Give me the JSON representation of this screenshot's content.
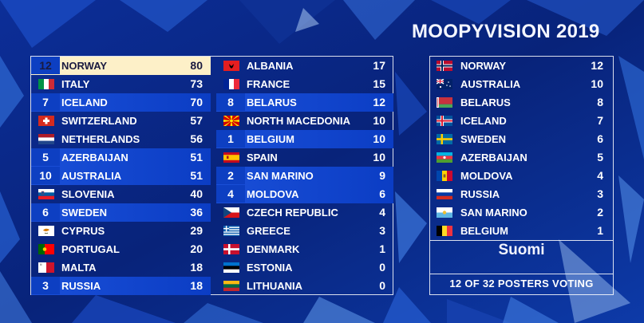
{
  "title": "MOOPYVISION 2019",
  "scoreboard": {
    "left": [
      {
        "pts": "12",
        "country": "NORWAY",
        "total": "80",
        "flag": "norway-flag",
        "scored": true,
        "top": true
      },
      {
        "pts": "",
        "country": "ITALY",
        "total": "73",
        "flag": "italy-flag",
        "scored": false
      },
      {
        "pts": "7",
        "country": "ICELAND",
        "total": "70",
        "flag": "iceland-flag",
        "scored": true
      },
      {
        "pts": "",
        "country": "SWITZERLAND",
        "total": "57",
        "flag": "switzerland-flag",
        "scored": false
      },
      {
        "pts": "",
        "country": "NETHERLANDS",
        "total": "56",
        "flag": "netherlands-flag",
        "scored": false
      },
      {
        "pts": "5",
        "country": "AZERBAIJAN",
        "total": "51",
        "flag": "azerbaijan-flag",
        "scored": true
      },
      {
        "pts": "10",
        "country": "AUSTRALIA",
        "total": "51",
        "flag": "australia-flag",
        "scored": true
      },
      {
        "pts": "",
        "country": "SLOVENIA",
        "total": "40",
        "flag": "slovenia-flag",
        "scored": false
      },
      {
        "pts": "6",
        "country": "SWEDEN",
        "total": "36",
        "flag": "sweden-flag",
        "scored": true
      },
      {
        "pts": "",
        "country": "CYPRUS",
        "total": "29",
        "flag": "cyprus-flag",
        "scored": false
      },
      {
        "pts": "",
        "country": "PORTUGAL",
        "total": "20",
        "flag": "portugal-flag",
        "scored": false
      },
      {
        "pts": "",
        "country": "MALTA",
        "total": "18",
        "flag": "malta-flag",
        "scored": false
      },
      {
        "pts": "3",
        "country": "RUSSIA",
        "total": "18",
        "flag": "russia-flag",
        "scored": true
      }
    ],
    "right": [
      {
        "pts": "",
        "country": "ALBANIA",
        "total": "17",
        "flag": "albania-flag",
        "scored": false
      },
      {
        "pts": "",
        "country": "FRANCE",
        "total": "15",
        "flag": "france-flag",
        "scored": false
      },
      {
        "pts": "8",
        "country": "BELARUS",
        "total": "12",
        "flag": "belarus-flag",
        "scored": true
      },
      {
        "pts": "",
        "country": "NORTH MACEDONIA",
        "total": "10",
        "flag": "north-macedonia-flag",
        "scored": false
      },
      {
        "pts": "1",
        "country": "BELGIUM",
        "total": "10",
        "flag": "belgium-flag",
        "scored": true
      },
      {
        "pts": "",
        "country": "SPAIN",
        "total": "10",
        "flag": "spain-flag",
        "scored": false
      },
      {
        "pts": "2",
        "country": "SAN MARINO",
        "total": "9",
        "flag": "san-marino-flag",
        "scored": true
      },
      {
        "pts": "4",
        "country": "MOLDOVA",
        "total": "6",
        "flag": "moldova-flag",
        "scored": true
      },
      {
        "pts": "",
        "country": "CZECH REPUBLIC",
        "total": "4",
        "flag": "czech-republic-flag",
        "scored": false
      },
      {
        "pts": "",
        "country": "GREECE",
        "total": "3",
        "flag": "greece-flag",
        "scored": false
      },
      {
        "pts": "",
        "country": "DENMARK",
        "total": "1",
        "flag": "denmark-flag",
        "scored": false
      },
      {
        "pts": "",
        "country": "ESTONIA",
        "total": "0",
        "flag": "estonia-flag",
        "scored": false
      },
      {
        "pts": "",
        "country": "LITHUANIA",
        "total": "0",
        "flag": "lithuania-flag",
        "scored": false
      }
    ]
  },
  "votes": [
    {
      "country": "NORWAY",
      "pts": "12",
      "flag": "norway-flag"
    },
    {
      "country": "AUSTRALIA",
      "pts": "10",
      "flag": "australia-flag"
    },
    {
      "country": "BELARUS",
      "pts": "8",
      "flag": "belarus-flag"
    },
    {
      "country": "ICELAND",
      "pts": "7",
      "flag": "iceland-flag"
    },
    {
      "country": "SWEDEN",
      "pts": "6",
      "flag": "sweden-flag"
    },
    {
      "country": "AZERBAIJAN",
      "pts": "5",
      "flag": "azerbaijan-flag"
    },
    {
      "country": "MOLDOVA",
      "pts": "4",
      "flag": "moldova-flag"
    },
    {
      "country": "RUSSIA",
      "pts": "3",
      "flag": "russia-flag"
    },
    {
      "country": "SAN MARINO",
      "pts": "2",
      "flag": "san-marino-flag"
    },
    {
      "country": "BELGIUM",
      "pts": "1",
      "flag": "belgium-flag"
    }
  ],
  "voter": "Suomi",
  "voting_status": "12 OF 32 POSTERS VOTING",
  "colors": {
    "background": "#0a2a8a",
    "scored_row": "#1a4fd8",
    "leader_row": "#fdf0c8"
  }
}
